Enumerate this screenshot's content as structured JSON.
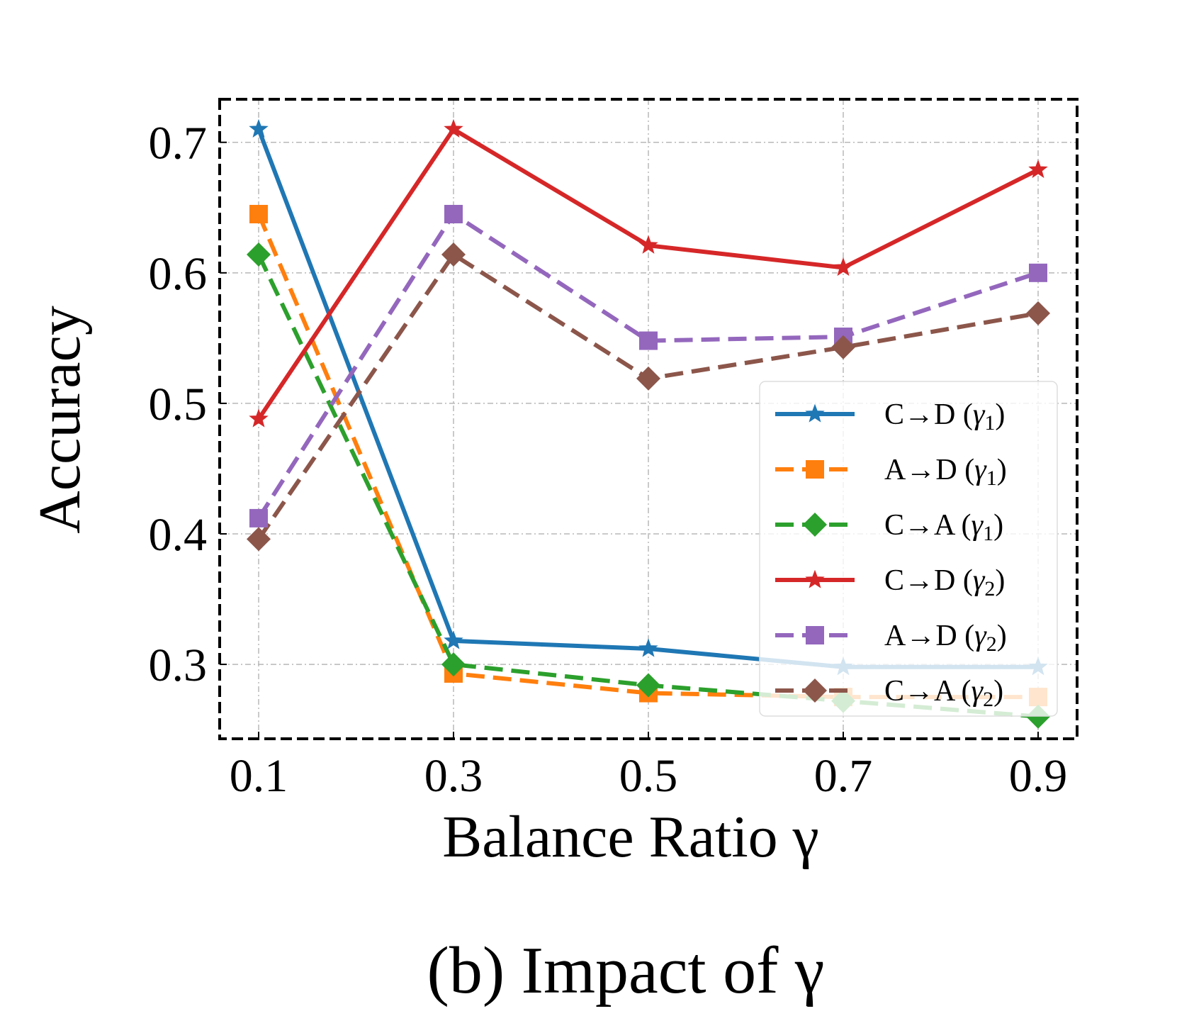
{
  "chart_data": {
    "type": "line",
    "title": "",
    "xlabel": "Balance Ratio γ",
    "ylabel": "Accuracy",
    "caption": "(b) Impact of γ",
    "x": [
      0.1,
      0.3,
      0.5,
      0.7,
      0.9
    ],
    "x_tick_labels": [
      "0.1",
      "0.3",
      "0.5",
      "0.7",
      "0.9"
    ],
    "y_ticks": [
      0.3,
      0.4,
      0.5,
      0.6,
      0.7
    ],
    "y_tick_labels": [
      "0.3",
      "0.4",
      "0.5",
      "0.6",
      "0.7"
    ],
    "xlim": [
      0.06,
      0.94
    ],
    "ylim": [
      0.243,
      0.733
    ],
    "grid": true,
    "legend_position": "lower-right",
    "series": [
      {
        "name": "C→D (γ1)",
        "legend_main": "C→D (",
        "legend_sym": "γ",
        "legend_sub": "1",
        "legend_close": ")",
        "values": [
          0.71,
          0.318,
          0.312,
          0.298,
          0.298
        ],
        "color": "#1f77b4",
        "marker": "star",
        "dash": "solid"
      },
      {
        "name": "A→D (γ1)",
        "legend_main": "A→D (",
        "legend_sym": "γ",
        "legend_sub": "1",
        "legend_close": ")",
        "values": [
          0.645,
          0.293,
          0.278,
          0.275,
          0.275
        ],
        "color": "#ff7f0e",
        "marker": "square",
        "dash": "dashed"
      },
      {
        "name": "C→A (γ1)",
        "legend_main": "C→A (",
        "legend_sym": "γ",
        "legend_sub": "1",
        "legend_close": ")",
        "values": [
          0.614,
          0.3,
          0.284,
          0.272,
          0.26
        ],
        "color": "#2ca02c",
        "marker": "diamond",
        "dash": "dashed"
      },
      {
        "name": "C→D (γ2)",
        "legend_main": "C→D (",
        "legend_sym": "γ",
        "legend_sub": "2",
        "legend_close": ")",
        "values": [
          0.488,
          0.71,
          0.621,
          0.604,
          0.679
        ],
        "color": "#d62728",
        "marker": "star",
        "dash": "solid"
      },
      {
        "name": "A→D (γ2)",
        "legend_main": "A→D (",
        "legend_sym": "γ",
        "legend_sub": "2",
        "legend_close": ")",
        "values": [
          0.412,
          0.645,
          0.548,
          0.551,
          0.6
        ],
        "color": "#9467bd",
        "marker": "square",
        "dash": "dashed"
      },
      {
        "name": "C→A (γ2)",
        "legend_main": "C→A (",
        "legend_sym": "γ",
        "legend_sub": "2",
        "legend_close": ")",
        "values": [
          0.396,
          0.614,
          0.519,
          0.543,
          0.569
        ],
        "color": "#8c564b",
        "marker": "diamond",
        "dash": "dashed"
      }
    ]
  }
}
